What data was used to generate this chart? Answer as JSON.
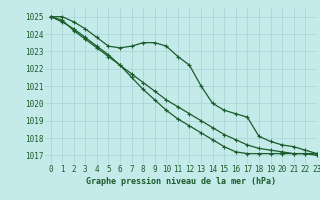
{
  "title": "Graphe pression niveau de la mer (hPa)",
  "bg_color": "#c5eaea",
  "grid_color": "#a8d4d4",
  "line_color": "#1a5c2a",
  "xlim": [
    -0.5,
    23
  ],
  "ylim": [
    1016.5,
    1025.5
  ],
  "yticks": [
    1017,
    1018,
    1019,
    1020,
    1021,
    1022,
    1023,
    1024,
    1025
  ],
  "xticks": [
    0,
    1,
    2,
    3,
    4,
    5,
    6,
    7,
    8,
    9,
    10,
    11,
    12,
    13,
    14,
    15,
    16,
    17,
    18,
    19,
    20,
    21,
    22,
    23
  ],
  "series1_x": [
    0,
    1,
    2,
    3,
    4,
    5,
    6,
    7,
    8,
    9,
    10,
    11,
    12,
    13,
    14,
    15,
    16,
    17,
    18,
    19,
    20,
    21,
    22,
    23
  ],
  "series1_y": [
    1025.0,
    1025.0,
    1024.7,
    1024.3,
    1023.8,
    1023.3,
    1023.2,
    1023.3,
    1023.5,
    1023.5,
    1023.3,
    1022.7,
    1022.2,
    1021.0,
    1020.0,
    1019.6,
    1019.4,
    1019.2,
    1018.1,
    1017.8,
    1017.6,
    1017.5,
    1017.3,
    1017.1
  ],
  "series2_x": [
    0,
    1,
    2,
    3,
    4,
    5,
    6,
    7,
    8,
    9,
    10,
    11,
    12,
    13,
    14,
    15,
    16,
    17,
    18,
    19,
    20,
    21,
    22,
    23
  ],
  "series2_y": [
    1025.0,
    1024.7,
    1024.3,
    1023.8,
    1023.3,
    1022.8,
    1022.2,
    1021.5,
    1020.8,
    1020.2,
    1019.6,
    1019.1,
    1018.7,
    1018.3,
    1017.9,
    1017.5,
    1017.2,
    1017.1,
    1017.1,
    1017.1,
    1017.1,
    1017.1,
    1017.1,
    1017.1
  ],
  "series3_x": [
    0,
    1,
    2,
    3,
    4,
    5,
    6,
    7,
    8,
    9,
    10,
    11,
    12,
    13,
    14,
    15,
    16,
    17,
    18,
    19,
    20,
    21,
    22,
    23
  ],
  "series3_y": [
    1025.0,
    1024.8,
    1024.2,
    1023.7,
    1023.2,
    1022.7,
    1022.2,
    1021.7,
    1021.2,
    1020.7,
    1020.2,
    1019.8,
    1019.4,
    1019.0,
    1018.6,
    1018.2,
    1017.9,
    1017.6,
    1017.4,
    1017.3,
    1017.2,
    1017.1,
    1017.1,
    1017.0
  ],
  "label_fontsize": 5.5,
  "title_fontsize": 6.0
}
